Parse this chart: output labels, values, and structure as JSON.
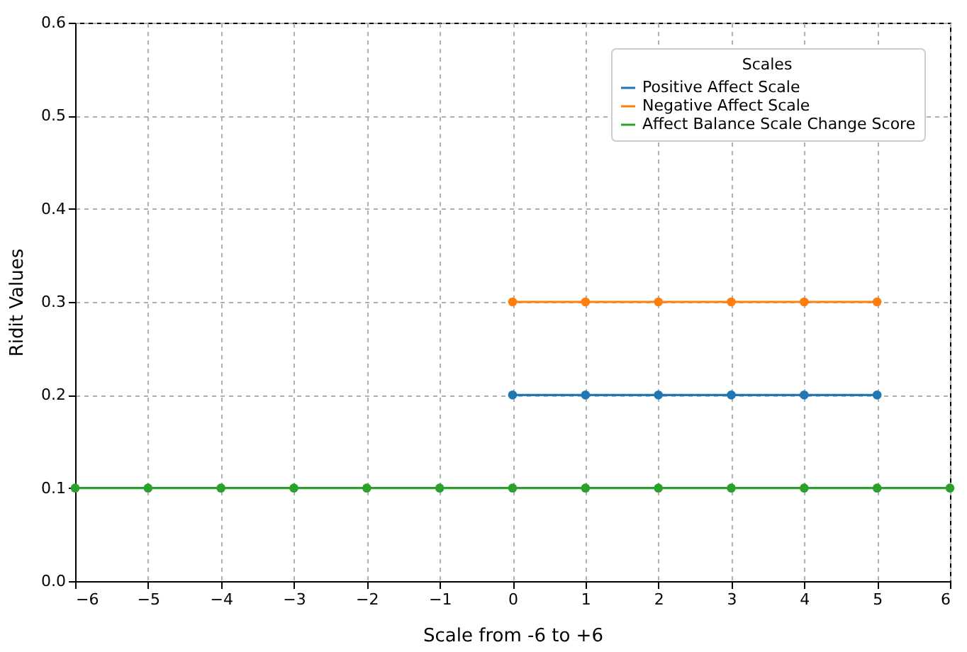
{
  "chart_data": {
    "type": "line",
    "xlabel": "Scale from -6 to +6",
    "ylabel": "Ridit Values",
    "legend_title": "Scales",
    "xlim": [
      -6,
      6
    ],
    "xticks": [
      -6,
      -5,
      -4,
      -3,
      -2,
      -1,
      0,
      1,
      2,
      3,
      4,
      5,
      6
    ],
    "ylim": [
      0,
      0.6
    ],
    "yticks": [
      {
        "value": 0,
        "label": "0.0"
      },
      0.1,
      0.2,
      0.3,
      0.4,
      0.5,
      0.6
    ],
    "grid": true,
    "legend": "top right",
    "marker": "circle",
    "line_style": "solid",
    "series": [
      {
        "name": "Positive Affect Scale",
        "color": "#1f77b4",
        "x": [
          0,
          1,
          2,
          3,
          4,
          5
        ],
        "values": [
          0.2,
          0.2,
          0.2,
          0.2,
          0.2,
          0.2
        ]
      },
      {
        "name": "Negative Affect Scale",
        "color": "#ff7f0e",
        "x": [
          0,
          1,
          2,
          3,
          4,
          5
        ],
        "values": [
          0.3,
          0.3,
          0.3,
          0.3,
          0.3,
          0.3
        ]
      },
      {
        "name": "Affect Balance Scale Change Score",
        "color": "#2ca02c",
        "x": [
          -6,
          -5,
          -4,
          -3,
          -2,
          -1,
          0,
          1,
          2,
          3,
          4,
          5,
          6
        ],
        "values": [
          0.1,
          0.1,
          0.1,
          0.1,
          0.1,
          0.1,
          0.1,
          0.1,
          0.1,
          0.1,
          0.1,
          0.1,
          0.1
        ]
      }
    ]
  }
}
